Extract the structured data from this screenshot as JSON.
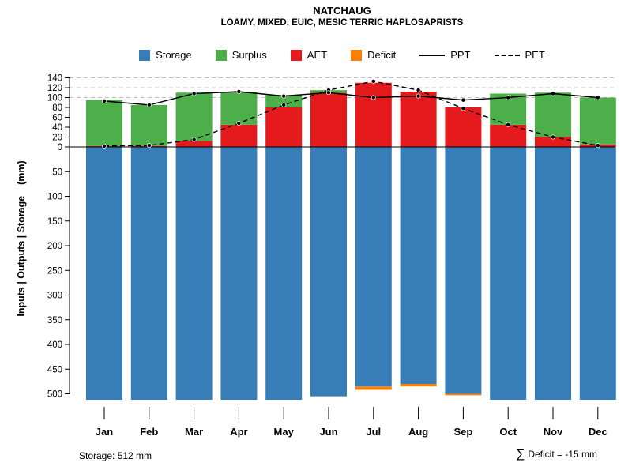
{
  "title": "NATCHAUG",
  "subtitle": "LOAMY, MIXED, EUIC, MESIC TERRIC HAPLOSAPRISTS",
  "legend": [
    {
      "label": "Storage",
      "type": "swatch",
      "color": "#377EB8"
    },
    {
      "label": "Surplus",
      "type": "swatch",
      "color": "#4DAF4A"
    },
    {
      "label": "AET",
      "type": "swatch",
      "color": "#E41A1C"
    },
    {
      "label": "Deficit",
      "type": "swatch",
      "color": "#FF7F00"
    },
    {
      "label": "PPT",
      "type": "line-solid",
      "color": "#000000"
    },
    {
      "label": "PET",
      "type": "line-dashed",
      "color": "#000000"
    }
  ],
  "footer": {
    "storage_label": "Storage: 512 mm",
    "deficit_sigma": "∑",
    "deficit_label": "Deficit = -15 mm"
  },
  "chart_data": {
    "type": "bar",
    "title": "NATCHAUG",
    "subtitle": "LOAMY, MIXED, EUIC, MESIC TERRIC HAPLOSAPRISTS",
    "ylabel": "Inputs | Outputs | Storage    (mm)",
    "categories": [
      "Jan",
      "Feb",
      "Mar",
      "Apr",
      "May",
      "Jun",
      "Jul",
      "Aug",
      "Sep",
      "Oct",
      "Nov",
      "Dec"
    ],
    "series": [
      {
        "name": "Storage",
        "kind": "bar-down",
        "color": "#377EB8",
        "values": [
          512,
          512,
          512,
          512,
          512,
          505,
          485,
          480,
          500,
          512,
          512,
          512
        ]
      },
      {
        "name": "AET",
        "kind": "bar-up",
        "color": "#E41A1C",
        "values": [
          2,
          2,
          12,
          45,
          80,
          110,
          130,
          112,
          80,
          45,
          20,
          5
        ]
      },
      {
        "name": "Surplus",
        "kind": "bar-up-stacked",
        "color": "#4DAF4A",
        "values": [
          93,
          83,
          98,
          67,
          25,
          5,
          0,
          0,
          0,
          63,
          90,
          95
        ]
      },
      {
        "name": "Deficit",
        "kind": "bar-down-tip",
        "color": "#FF7F00",
        "values": [
          0,
          0,
          0,
          0,
          0,
          0,
          7,
          5,
          3,
          0,
          0,
          0
        ]
      },
      {
        "name": "PPT",
        "kind": "line",
        "style": "solid",
        "color": "#000000",
        "values": [
          93,
          85,
          108,
          112,
          103,
          110,
          100,
          103,
          95,
          100,
          108,
          100
        ]
      },
      {
        "name": "PET",
        "kind": "line",
        "style": "dashed",
        "color": "#000000",
        "values": [
          2,
          3,
          15,
          48,
          85,
          115,
          133,
          115,
          78,
          45,
          20,
          3
        ]
      }
    ],
    "y_up_ticks": [
      0,
      20,
      40,
      60,
      80,
      100,
      120,
      140
    ],
    "y_down_ticks": [
      50,
      100,
      150,
      200,
      250,
      300,
      350,
      400,
      450,
      500
    ],
    "gridlines_up": [
      100,
      120,
      140
    ],
    "ylim_up": 140,
    "ylim_down": 520,
    "grid": "dashed-top-only",
    "legend_position": "top"
  }
}
